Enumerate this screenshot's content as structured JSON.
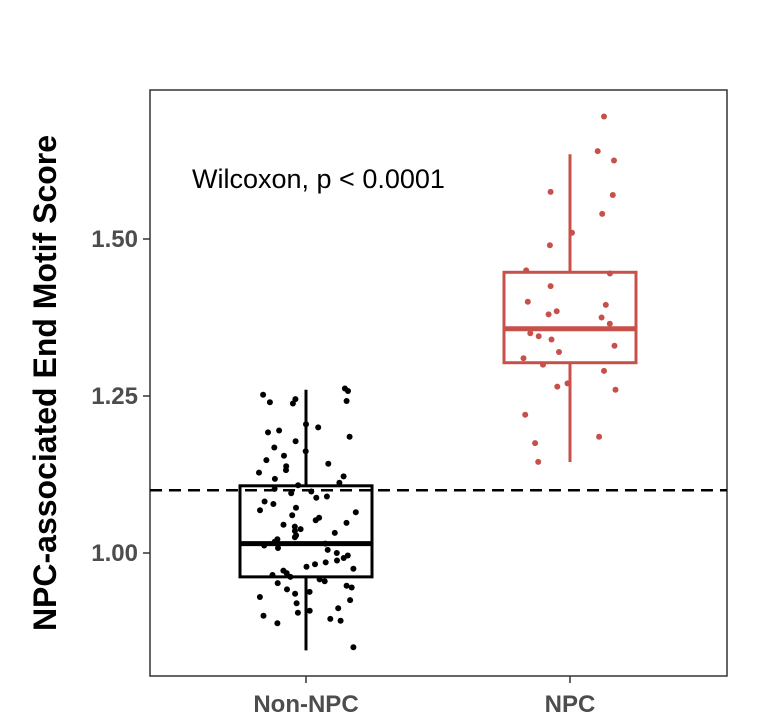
{
  "chart_data": {
    "type": "boxplot",
    "title": "",
    "xlabel": "",
    "ylabel": "NPC-associated End Motif Score",
    "ylim": [
      0.79,
      1.725
    ],
    "yticks": [
      1.0,
      1.25,
      1.5
    ],
    "ytick_labels": [
      "1.00",
      "1.25",
      "1.50"
    ],
    "categories": [
      "Non-NPC",
      "NPC"
    ],
    "annotation": "Wilcoxon, p < 0.0001",
    "threshold": 1.1,
    "grid": false,
    "legend": "none",
    "groups": [
      {
        "name": "Non-NPC",
        "color": "#000000",
        "whisker_low": 0.845,
        "q1": 0.962,
        "median": 1.015,
        "q3": 1.107,
        "whisker_high": 1.26,
        "points": [
          1.262,
          1.258,
          1.252,
          1.245,
          1.242,
          1.24,
          1.238,
          1.205,
          1.2,
          1.195,
          1.192,
          1.185,
          1.178,
          1.168,
          1.162,
          1.155,
          1.148,
          1.142,
          1.138,
          1.132,
          1.128,
          1.122,
          1.118,
          1.112,
          1.108,
          1.102,
          1.098,
          1.095,
          1.09,
          1.088,
          1.082,
          1.078,
          1.072,
          1.068,
          1.065,
          1.06,
          1.056,
          1.052,
          1.048,
          1.045,
          1.042,
          1.038,
          1.035,
          1.032,
          1.028,
          1.025,
          1.022,
          1.018,
          1.015,
          1.012,
          1.008,
          1.005,
          1.0,
          0.996,
          0.992,
          0.988,
          0.985,
          0.982,
          0.978,
          0.975,
          0.972,
          0.968,
          0.965,
          0.962,
          0.958,
          0.955,
          0.952,
          0.948,
          0.945,
          0.942,
          0.938,
          0.935,
          0.93,
          0.925,
          0.92,
          0.912,
          0.908,
          0.905,
          0.9,
          0.895,
          0.892,
          0.888,
          0.85
        ]
      },
      {
        "name": "NPC",
        "color": "#c8504b",
        "whisker_low": 1.145,
        "q1": 1.303,
        "median": 1.357,
        "q3": 1.447,
        "whisker_high": 1.635,
        "points": [
          1.695,
          1.64,
          1.625,
          1.575,
          1.57,
          1.54,
          1.51,
          1.49,
          1.45,
          1.445,
          1.425,
          1.4,
          1.395,
          1.385,
          1.38,
          1.375,
          1.365,
          1.35,
          1.345,
          1.34,
          1.33,
          1.32,
          1.31,
          1.3,
          1.29,
          1.27,
          1.265,
          1.26,
          1.22,
          1.185,
          1.175,
          1.145
        ]
      }
    ]
  }
}
